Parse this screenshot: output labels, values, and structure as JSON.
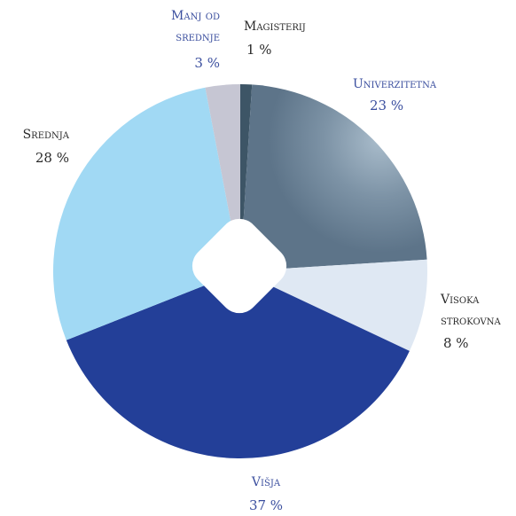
{
  "chart_data": {
    "type": "pie",
    "categories": [
      "Magisterij",
      "Univerzitetna",
      "Visoka strokovna",
      "Višja",
      "Srednja",
      "Manj od srednje"
    ],
    "values": [
      1,
      23,
      8,
      37,
      28,
      3
    ],
    "value_labels": [
      "1 %",
      "23 %",
      "8 %",
      "37 %",
      "28 %",
      "3 %"
    ],
    "colors": [
      "#3d5566",
      "#7f95a8",
      "#dfe8f3",
      "#233f98",
      "#a1d9f4",
      "#c6c6d3"
    ]
  }
}
